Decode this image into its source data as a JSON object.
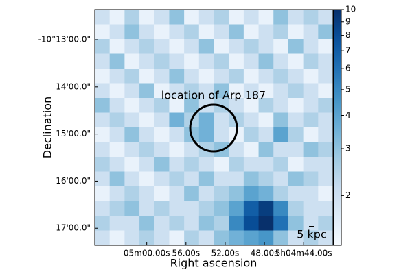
{
  "chart_data": {
    "type": "heatmap",
    "x_label": "Right ascension",
    "y_label": "Declination",
    "annotation": "location of Arp 187",
    "scale_bar_label": "5 kpc",
    "colormap": "Blues",
    "color_scale": "log",
    "xlim": [
      65.3,
      41.0
    ],
    "xticks": [
      {
        "value": 60,
        "label": "05m00.00s"
      },
      {
        "value": 56,
        "label": "56.00s"
      },
      {
        "value": 52,
        "label": "52.00s"
      },
      {
        "value": 48,
        "label": "48.00s"
      },
      {
        "value": 44,
        "label": "5h04m44.00s"
      }
    ],
    "ylim": [
      17.36,
      12.36
    ],
    "yticks": [
      {
        "value": 13,
        "label": "-10°13'00.0\""
      },
      {
        "value": 14,
        "label": "14'00.0\""
      },
      {
        "value": 15,
        "label": "15'00.0\""
      },
      {
        "value": 16,
        "label": "16'00.0\""
      },
      {
        "value": 17,
        "label": "17'00.0\""
      }
    ],
    "zlim": [
      1.3,
      10
    ],
    "zticks": [
      2,
      3,
      4,
      5,
      6,
      7,
      8,
      9,
      10
    ],
    "z": [
      [
        2,
        1.5,
        2.5,
        1.5,
        2,
        3,
        1.5,
        2,
        2.5,
        1.5,
        2,
        1.5,
        3,
        2,
        2.5,
        2
      ],
      [
        1.5,
        2,
        3,
        2,
        1.5,
        2,
        2.5,
        1.5,
        2,
        3,
        1.5,
        2,
        2.5,
        1.5,
        2,
        3
      ],
      [
        2.5,
        1.5,
        2,
        2.5,
        2,
        1.5,
        2,
        3,
        1.5,
        2,
        2.5,
        2,
        1.5,
        3,
        2,
        1.5
      ],
      [
        2,
        3,
        1.5,
        2,
        2.5,
        2,
        1.5,
        2,
        2.5,
        1.5,
        2,
        3,
        2,
        1.5,
        2.5,
        2
      ],
      [
        1.5,
        2,
        2.5,
        1.5,
        2,
        3,
        2,
        1.5,
        2,
        2.5,
        1.5,
        2,
        2.5,
        2,
        1.5,
        2
      ],
      [
        2,
        1.5,
        2,
        3,
        1.5,
        2,
        2.5,
        2,
        3,
        1.5,
        2,
        1.5,
        2,
        2.5,
        2,
        1.5
      ],
      [
        3,
        2,
        1.5,
        2,
        2.5,
        1.5,
        3,
        2,
        2.5,
        2,
        1.5,
        2.5,
        2,
        1.5,
        2,
        2.5
      ],
      [
        2,
        2.5,
        2,
        1.5,
        2,
        3.5,
        2.5,
        3.5,
        2,
        2.5,
        2,
        1.5,
        3,
        2,
        2.5,
        2
      ],
      [
        1.5,
        2,
        3,
        2,
        1.5,
        2,
        3,
        3.5,
        2,
        1.5,
        2.5,
        2,
        4,
        2.5,
        1.5,
        2
      ],
      [
        2,
        1.5,
        2,
        2.5,
        2,
        1.5,
        2,
        2.5,
        3,
        2,
        1.5,
        3,
        2,
        2,
        3,
        2.5
      ],
      [
        2.5,
        2,
        1.5,
        2,
        3,
        2,
        2.5,
        2,
        1.5,
        2.5,
        2,
        2,
        2.5,
        1.5,
        2,
        2
      ],
      [
        2,
        3,
        2,
        1.5,
        2,
        2.5,
        2,
        3,
        2,
        2,
        3,
        2.5,
        2,
        3,
        2.5,
        2
      ],
      [
        1.5,
        2,
        2.5,
        2,
        1.5,
        2,
        3,
        2,
        2.5,
        3,
        4,
        3.5,
        2.5,
        2,
        2,
        1.5
      ],
      [
        2,
        2.5,
        3,
        2,
        2.5,
        2,
        2,
        2.5,
        3,
        4,
        7,
        9,
        5,
        2.5,
        2,
        2
      ],
      [
        2.5,
        2,
        2,
        3,
        2,
        2.5,
        2,
        3,
        2.5,
        5,
        8,
        10,
        6,
        3,
        2,
        2.5
      ],
      [
        2,
        1.5,
        2,
        2.5,
        2,
        1.5,
        2.5,
        2,
        3,
        3.5,
        4,
        4.5,
        3,
        2,
        2.5,
        2
      ]
    ]
  }
}
